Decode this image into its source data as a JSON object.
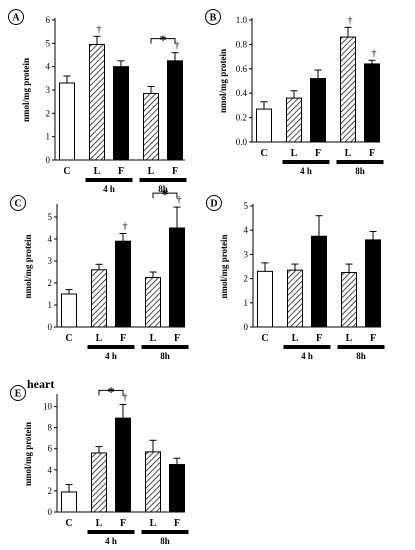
{
  "colors": {
    "control": "#ffffff",
    "lean": "hatched",
    "fat": "#000000",
    "axis": "#000000"
  },
  "chart_data": [
    {
      "type": "bar",
      "panel_label": "A",
      "title": "",
      "ylabel": "nmol/mg protein",
      "ylim": [
        0,
        6
      ],
      "yticks": [
        "0",
        "1",
        "2",
        "3",
        "4",
        "5",
        "6"
      ],
      "groups": [
        {
          "label": "4 h",
          "bars": [
            1,
            2
          ]
        },
        {
          "label": "8h",
          "bars": [
            3,
            4
          ]
        }
      ],
      "categories": [
        "C",
        "L",
        "F",
        "L",
        "F"
      ],
      "bars": [
        {
          "label": "C",
          "kind": "control",
          "value": 3.3,
          "error": 0.3
        },
        {
          "label": "L",
          "kind": "lean",
          "value": 4.95,
          "error": 0.35,
          "annotation": "†"
        },
        {
          "label": "F",
          "kind": "fat",
          "value": 4.0,
          "error": 0.25
        },
        {
          "label": "L",
          "kind": "lean",
          "value": 2.85,
          "error": 0.3
        },
        {
          "label": "F",
          "kind": "fat",
          "value": 4.25,
          "error": 0.35,
          "annotation": "†"
        }
      ],
      "brackets": [
        {
          "from": 3,
          "to": 4,
          "label": "*"
        }
      ],
      "heading": ""
    },
    {
      "type": "bar",
      "panel_label": "B",
      "title": "",
      "ylabel": "nmol/mg protein",
      "ylim": [
        0,
        1.0
      ],
      "yticks": [
        "0.0",
        "0.2",
        "0.4",
        "0.6",
        "0.8",
        "1.0"
      ],
      "groups": [
        {
          "label": "4 h",
          "bars": [
            1,
            2
          ]
        },
        {
          "label": "8h",
          "bars": [
            3,
            4
          ]
        }
      ],
      "categories": [
        "C",
        "L",
        "F",
        "L",
        "F"
      ],
      "bars": [
        {
          "label": "C",
          "kind": "control",
          "value": 0.27,
          "error": 0.06
        },
        {
          "label": "L",
          "kind": "lean",
          "value": 0.36,
          "error": 0.06
        },
        {
          "label": "F",
          "kind": "fat",
          "value": 0.52,
          "error": 0.07
        },
        {
          "label": "L",
          "kind": "lean",
          "value": 0.86,
          "error": 0.08,
          "annotation": "†"
        },
        {
          "label": "F",
          "kind": "fat",
          "value": 0.64,
          "error": 0.03,
          "annotation": "†"
        }
      ],
      "brackets": [],
      "heading": ""
    },
    {
      "type": "bar",
      "panel_label": "C",
      "title": "",
      "ylabel": "nmol/mg protein",
      "ylim": [
        0,
        5.5
      ],
      "yticks": [
        "0",
        "1",
        "2",
        "3",
        "4",
        "5"
      ],
      "groups": [
        {
          "label": "4 h",
          "bars": [
            1,
            2
          ]
        },
        {
          "label": "8h",
          "bars": [
            3,
            4
          ]
        }
      ],
      "categories": [
        "C",
        "L",
        "F",
        "L",
        "F"
      ],
      "bars": [
        {
          "label": "C",
          "kind": "control",
          "value": 1.5,
          "error": 0.2
        },
        {
          "label": "L",
          "kind": "lean",
          "value": 2.6,
          "error": 0.25
        },
        {
          "label": "F",
          "kind": "fat",
          "value": 3.9,
          "error": 0.35,
          "annotation": "†"
        },
        {
          "label": "L",
          "kind": "lean",
          "value": 2.25,
          "error": 0.25
        },
        {
          "label": "F",
          "kind": "fat",
          "value": 4.5,
          "error": 0.95,
          "annotation": "†"
        }
      ],
      "brackets": [
        {
          "from": 3,
          "to": 4,
          "label": "*"
        }
      ],
      "heading": ""
    },
    {
      "type": "bar",
      "panel_label": "D",
      "title": "",
      "ylabel": "nmol/mg protein",
      "ylim": [
        0,
        5
      ],
      "yticks": [
        "0",
        "1",
        "2",
        "3",
        "4",
        "5"
      ],
      "groups": [
        {
          "label": "4 h",
          "bars": [
            1,
            2
          ]
        },
        {
          "label": "8h",
          "bars": [
            3,
            4
          ]
        }
      ],
      "categories": [
        "C",
        "L",
        "F",
        "L",
        "F"
      ],
      "bars": [
        {
          "label": "C",
          "kind": "control",
          "value": 2.3,
          "error": 0.35
        },
        {
          "label": "L",
          "kind": "lean",
          "value": 2.35,
          "error": 0.25
        },
        {
          "label": "F",
          "kind": "fat",
          "value": 3.75,
          "error": 0.85
        },
        {
          "label": "L",
          "kind": "lean",
          "value": 2.25,
          "error": 0.35
        },
        {
          "label": "F",
          "kind": "fat",
          "value": 3.6,
          "error": 0.35
        }
      ],
      "brackets": [],
      "heading": ""
    },
    {
      "type": "bar",
      "panel_label": "E",
      "title": "",
      "ylabel": "nmol/mg protein",
      "ylim": [
        0,
        11
      ],
      "yticks": [
        "0",
        "2",
        "4",
        "6",
        "8",
        "10"
      ],
      "groups": [
        {
          "label": "4 h",
          "bars": [
            1,
            2
          ]
        },
        {
          "label": "8h",
          "bars": [
            3,
            4
          ]
        }
      ],
      "categories": [
        "C",
        "L",
        "F",
        "L",
        "F"
      ],
      "bars": [
        {
          "label": "C",
          "kind": "control",
          "value": 1.9,
          "error": 0.7
        },
        {
          "label": "L",
          "kind": "lean",
          "value": 5.6,
          "error": 0.6
        },
        {
          "label": "F",
          "kind": "fat",
          "value": 8.9,
          "error": 1.3,
          "annotation": "†"
        },
        {
          "label": "L",
          "kind": "lean",
          "value": 5.7,
          "error": 1.1
        },
        {
          "label": "F",
          "kind": "fat",
          "value": 4.5,
          "error": 0.6
        }
      ],
      "brackets": [
        {
          "from": 1,
          "to": 2,
          "label": "*"
        }
      ],
      "heading": "heart"
    }
  ]
}
